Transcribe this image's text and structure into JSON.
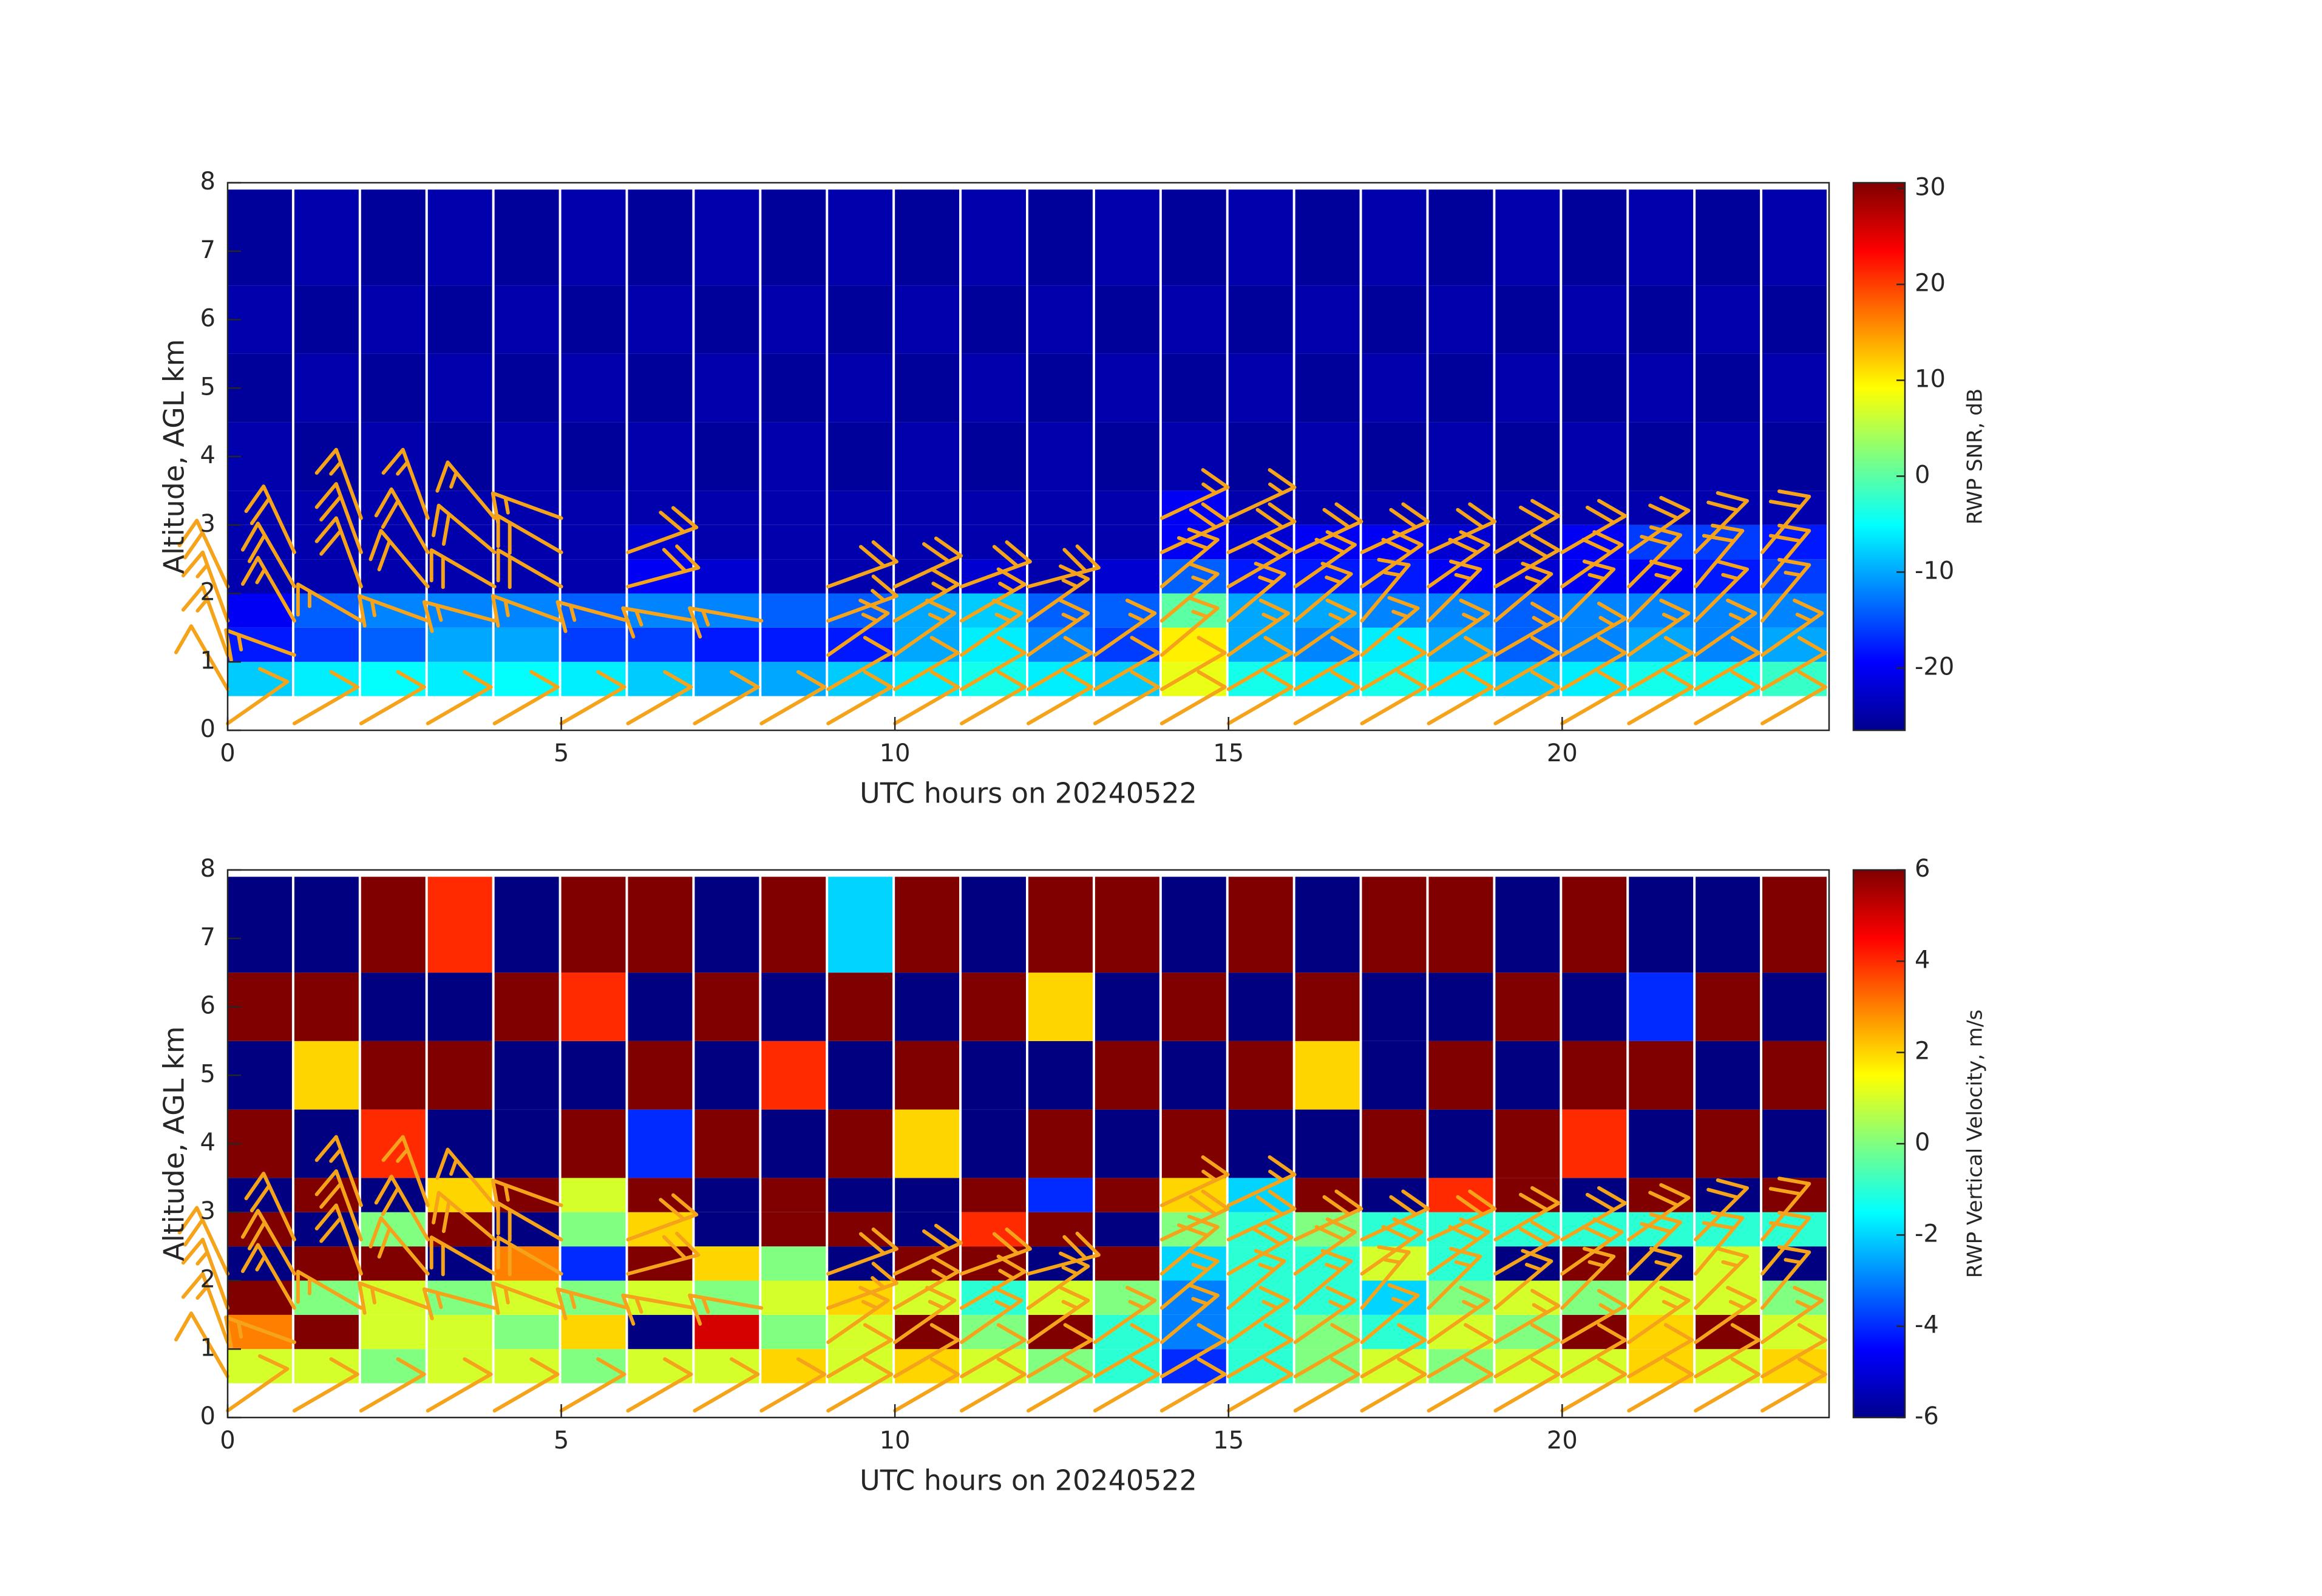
{
  "chart_data": [
    {
      "type": "heatmap",
      "xlabel": "UTC hours on 20240522",
      "ylabel": "Altitude, AGL km",
      "colorbar_label": "RWP SNR, dB",
      "colormap": "jet",
      "xlim": [
        0,
        24
      ],
      "ylim": [
        0,
        8
      ],
      "xticks": [
        0,
        5,
        10,
        15,
        20
      ],
      "yticks": [
        0,
        1,
        2,
        3,
        4,
        5,
        6,
        7,
        8
      ],
      "clim": [
        -26.5,
        30.6
      ],
      "colorbar_ticks": [
        -20,
        -10,
        0,
        10,
        20,
        30
      ],
      "x_edges": [
        0,
        1,
        2,
        3,
        4,
        5,
        6,
        7,
        8,
        9,
        10,
        11,
        12,
        13,
        14,
        15,
        16,
        17,
        18,
        19,
        20,
        21,
        22,
        23,
        24
      ],
      "y_edges": [
        0.5,
        1,
        1.5,
        2,
        2.5,
        3,
        3.5,
        4.5,
        5.5,
        6.5,
        7.9
      ],
      "values": [
        [
          -8,
          -6,
          -5,
          -6,
          -5,
          -6,
          -8,
          -10,
          -10,
          -8,
          -6,
          -4,
          -6,
          -8,
          8,
          -4,
          -6,
          -4,
          -6,
          -8,
          -6,
          -4,
          -4,
          -2
        ],
        [
          -18,
          -16,
          -14,
          -10,
          -10,
          -16,
          -16,
          -18,
          -18,
          -18,
          -10,
          -6,
          -12,
          -16,
          10,
          -10,
          -12,
          -6,
          -10,
          -14,
          -12,
          -10,
          -12,
          -10
        ],
        [
          -20,
          -14,
          -12,
          -12,
          -12,
          -14,
          -12,
          -12,
          -14,
          -14,
          -10,
          -8,
          -14,
          -14,
          0,
          -10,
          -10,
          -12,
          -12,
          -14,
          -12,
          -12,
          -12,
          -12
        ],
        [
          -24,
          -24,
          -24,
          -24,
          -24,
          -24,
          -20,
          -22,
          -24,
          -24,
          -24,
          -22,
          -24,
          -22,
          -14,
          -18,
          -18,
          -18,
          -20,
          -22,
          -20,
          -20,
          -18,
          -16
        ],
        [
          -24,
          -24,
          -24,
          -24,
          -24,
          -24,
          -22,
          -24,
          -24,
          -24,
          -24,
          -24,
          -24,
          -24,
          -20,
          -22,
          -20,
          -20,
          -22,
          -24,
          -20,
          -16,
          -16,
          -18
        ],
        [
          -24,
          -24,
          -24,
          -24,
          -24,
          -24,
          -24,
          -24,
          -24,
          -24,
          -24,
          -24,
          -24,
          -24,
          -20,
          -24,
          -24,
          -24,
          -24,
          -24,
          -24,
          -24,
          -24,
          -24
        ],
        [
          -24,
          -25,
          -24,
          -25,
          -24,
          -25,
          -24,
          -25,
          -24,
          -25,
          -24,
          -25,
          -24,
          -25,
          -24,
          -25,
          -24,
          -25,
          -24,
          -25,
          -24,
          -25,
          -24,
          -25
        ],
        [
          -25,
          -24,
          -25,
          -24,
          -25,
          -24,
          -25,
          -24,
          -25,
          -24,
          -25,
          -24,
          -25,
          -24,
          -25,
          -24,
          -25,
          -24,
          -25,
          -24,
          -25,
          -24,
          -25,
          -24
        ],
        [
          -24,
          -25,
          -24,
          -25,
          -24,
          -25,
          -24,
          -25,
          -24,
          -25,
          -24,
          -25,
          -24,
          -25,
          -24,
          -25,
          -24,
          -25,
          -24,
          -25,
          -24,
          -25,
          -24,
          -25
        ],
        [
          -25,
          -24,
          -25,
          -24,
          -25,
          -24,
          -25,
          -24,
          -25,
          -24,
          -25,
          -24,
          -25,
          -24,
          -25,
          -24,
          -25,
          -24,
          -25,
          -24,
          -25,
          -24,
          -25,
          -24
        ]
      ]
    },
    {
      "type": "heatmap",
      "xlabel": "UTC hours on 20240522",
      "ylabel": "Altitude, AGL km",
      "colorbar_label": "RWP Vertical Velocity, m/s",
      "colormap": "jet",
      "xlim": [
        0,
        24
      ],
      "ylim": [
        0,
        8
      ],
      "xticks": [
        0,
        5,
        10,
        15,
        20
      ],
      "yticks": [
        0,
        1,
        2,
        3,
        4,
        5,
        6,
        7,
        8
      ],
      "clim": [
        -6,
        6
      ],
      "colorbar_ticks": [
        -6,
        -4,
        -2,
        0,
        2,
        4,
        6
      ],
      "x_edges": [
        0,
        1,
        2,
        3,
        4,
        5,
        6,
        7,
        8,
        9,
        10,
        11,
        12,
        13,
        14,
        15,
        16,
        17,
        18,
        19,
        20,
        21,
        22,
        23,
        24
      ],
      "y_edges": [
        0.5,
        1,
        1.5,
        2,
        2.5,
        3,
        3.5,
        4.5,
        5.5,
        6.5,
        7.9
      ],
      "values": [
        [
          1,
          1,
          0,
          1,
          1,
          0,
          1,
          1,
          2,
          1,
          2,
          1,
          0,
          -1,
          -4,
          -1,
          0,
          1,
          0,
          1,
          1,
          2,
          1,
          2
        ],
        [
          3,
          6,
          1,
          1,
          0,
          2,
          -6,
          5,
          0,
          1,
          6,
          0,
          6,
          -1,
          -3,
          -1,
          0,
          -1,
          1,
          0,
          6,
          2,
          6,
          1
        ],
        [
          6,
          0,
          1,
          0,
          1,
          0,
          1,
          0,
          1,
          2,
          1,
          -1,
          1,
          0,
          -3,
          -1,
          -1,
          -2,
          0,
          1,
          0,
          1,
          1,
          0
        ],
        [
          -6,
          6,
          6,
          -6,
          3,
          -4,
          6,
          2,
          0,
          -6,
          6,
          6,
          -6,
          6,
          -2,
          -1,
          -1,
          1,
          -1,
          -6,
          6,
          -6,
          1,
          -6
        ],
        [
          6,
          -6,
          0,
          6,
          -6,
          0,
          2,
          -6,
          6,
          6,
          -6,
          4,
          6,
          -6,
          0,
          -1,
          0,
          -1,
          -1,
          -1,
          -1,
          -1,
          -1,
          -1
        ],
        [
          -6,
          6,
          -6,
          2,
          6,
          1,
          6,
          -6,
          6,
          -6,
          -6,
          6,
          -4,
          6,
          2,
          -2,
          6,
          -6,
          4,
          6,
          -6,
          6,
          -6,
          6
        ],
        [
          6,
          -6,
          4,
          -6,
          -6,
          6,
          -4,
          6,
          -6,
          6,
          2,
          -6,
          6,
          -6,
          6,
          -6,
          -6,
          6,
          -6,
          6,
          4,
          -6,
          6,
          -6
        ],
        [
          -6,
          2,
          6,
          6,
          -6,
          -6,
          6,
          -6,
          4,
          -6,
          6,
          -6,
          -6,
          6,
          -6,
          6,
          2,
          -6,
          6,
          -6,
          6,
          6,
          -6,
          6
        ],
        [
          6,
          6,
          -6,
          -6,
          6,
          4,
          -6,
          6,
          -6,
          6,
          -6,
          6,
          2,
          -6,
          6,
          -6,
          6,
          -6,
          -6,
          6,
          -6,
          -4,
          6,
          -6
        ],
        [
          -6,
          -6,
          6,
          4,
          -6,
          6,
          6,
          -6,
          6,
          -2,
          6,
          -6,
          6,
          6,
          -6,
          6,
          -6,
          6,
          6,
          -6,
          6,
          -6,
          -6,
          6
        ]
      ]
    }
  ],
  "wind_barbs": {
    "color": "#f5a31a",
    "x": [
      0,
      1,
      2,
      3,
      4,
      5,
      6,
      7,
      8,
      9,
      10,
      11,
      12,
      13,
      14,
      15,
      16,
      17,
      18,
      19,
      20,
      21,
      22,
      23
    ],
    "levels": [
      0.1,
      0.6,
      1.1,
      1.6,
      2.1,
      2.6,
      3.1
    ],
    "speed": [
      10,
      10,
      15,
      15,
      20,
      20,
      15
    ],
    "directions": [
      [
        55,
        60,
        60,
        60,
        60,
        60,
        60,
        60,
        60,
        60,
        60,
        60,
        60,
        60,
        60,
        60,
        60,
        60,
        60,
        60,
        60,
        60,
        60,
        60
      ],
      [
        330,
        null,
        null,
        null,
        null,
        null,
        null,
        null,
        null,
        60,
        60,
        60,
        60,
        60,
        60,
        60,
        60,
        60,
        60,
        60,
        60,
        60,
        60,
        60
      ],
      [
        340,
        290,
        null,
        null,
        null,
        null,
        null,
        null,
        null,
        55,
        55,
        55,
        55,
        55,
        50,
        55,
        55,
        50,
        55,
        60,
        60,
        55,
        55,
        55
      ],
      [
        340,
        330,
        300,
        290,
        285,
        290,
        285,
        280,
        280,
        70,
        60,
        60,
        55,
        null,
        50,
        50,
        50,
        40,
        45,
        50,
        45,
        45,
        45,
        40
      ],
      [
        335,
        330,
        340,
        320,
        300,
        300,
        75,
        null,
        null,
        70,
        65,
        70,
        75,
        null,
        50,
        60,
        55,
        55,
        55,
        60,
        55,
        45,
        40,
        40
      ],
      [
        null,
        335,
        340,
        330,
        310,
        300,
        70,
        null,
        null,
        null,
        null,
        null,
        null,
        null,
        65,
        65,
        65,
        65,
        65,
        60,
        60,
        55,
        45,
        40
      ],
      [
        null,
        null,
        340,
        340,
        320,
        290,
        null,
        null,
        null,
        null,
        null,
        null,
        null,
        null,
        65,
        65,
        null,
        null,
        null,
        null,
        null,
        null,
        null,
        null
      ]
    ]
  }
}
